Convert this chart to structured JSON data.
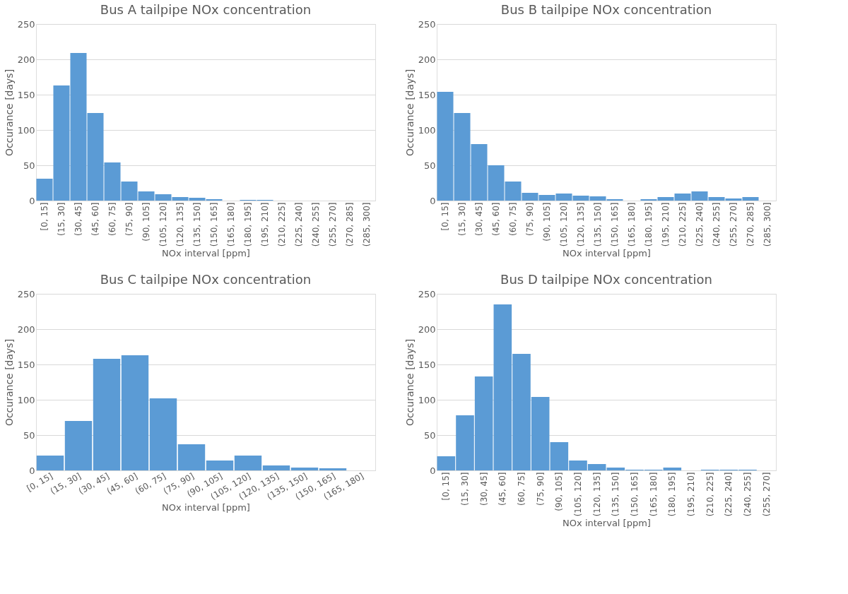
{
  "chart_data": [
    {
      "type": "bar",
      "title": "Bus A tailpipe NOx concentration",
      "xlabel": "NOx interval [ppm]",
      "ylabel": "Occurance [days]",
      "categories": [
        "[0, 15]",
        "(15, 30]",
        "(30, 45]",
        "(45, 60]",
        "(60, 75]",
        "(75, 90]",
        "(90, 105]",
        "(105, 120]",
        "(120, 135]",
        "(135, 150]",
        "(150, 165]",
        "(165, 180]",
        "(180, 195]",
        "(195, 210]",
        "(210, 225]",
        "(225, 240]",
        "(240, 255]",
        "(255, 270]",
        "(270, 285]",
        "(285, 300]"
      ],
      "values": [
        31,
        163,
        209,
        124,
        54,
        27,
        13,
        9,
        5,
        4,
        2,
        0,
        1,
        1,
        0,
        0,
        0,
        0,
        0,
        0
      ],
      "color": "#5b9bd5",
      "ylim": [
        0,
        250
      ],
      "yticks": [
        0,
        50,
        100,
        150,
        200,
        250
      ],
      "grid": "y"
    },
    {
      "type": "bar",
      "title": "Bus B tailpipe NOx concentration",
      "xlabel": "NOx interval [ppm]",
      "ylabel": "Occurance [days]",
      "categories": [
        "[0, 15]",
        "(15, 30]",
        "(30, 45]",
        "(45, 60]",
        "(60, 75]",
        "(75, 90]",
        "(90, 105]",
        "(105, 120]",
        "(120, 135]",
        "(135, 150]",
        "(150, 165]",
        "(165, 180]",
        "(180, 195]",
        "(195, 210]",
        "(210, 225]",
        "(225, 240]",
        "(240, 255]",
        "(255, 270]",
        "(270, 285]",
        "(285, 300]"
      ],
      "values": [
        154,
        124,
        80,
        50,
        27,
        11,
        8,
        10,
        7,
        6,
        2,
        0,
        2,
        5,
        10,
        13,
        5,
        3,
        5,
        0
      ],
      "color": "#5b9bd5",
      "ylim": [
        0,
        250
      ],
      "yticks": [
        0,
        50,
        100,
        150,
        200,
        250
      ],
      "grid": "y"
    },
    {
      "type": "bar",
      "title": "Bus C tailpipe NOx concentration",
      "xlabel": "NOx interval [ppm]",
      "ylabel": "Occurance [days]",
      "categories": [
        "[0, 15]",
        "(15, 30]",
        "(30, 45]",
        "(45, 60]",
        "(60, 75]",
        "(75, 90]",
        "(90, 105]",
        "(105, 120]",
        "(120, 135]",
        "(135, 150]",
        "(150, 165]",
        "(165, 180]"
      ],
      "values": [
        21,
        70,
        158,
        163,
        102,
        37,
        14,
        21,
        7,
        4,
        3,
        0
      ],
      "color": "#5b9bd5",
      "ylim": [
        0,
        250
      ],
      "yticks": [
        0,
        50,
        100,
        150,
        200,
        250
      ],
      "grid": "y"
    },
    {
      "type": "bar",
      "title": "Bus D tailpipe NOx concentration",
      "xlabel": "NOx interval [ppm]",
      "ylabel": "Occurance [days]",
      "categories": [
        "[0, 15]",
        "(15, 30]",
        "(30, 45]",
        "(45, 60]",
        "(60, 75]",
        "(75, 90]",
        "(90, 105]",
        "(105, 120]",
        "(120, 135]",
        "(135, 150]",
        "(150, 165]",
        "(165, 180]",
        "(180, 195]",
        "(195, 210]",
        "(210, 225]",
        "(225, 240]",
        "(240, 255]",
        "(255, 270]"
      ],
      "values": [
        20,
        78,
        133,
        235,
        165,
        104,
        40,
        14,
        9,
        4,
        1,
        1,
        4,
        0,
        1,
        1,
        1,
        0
      ],
      "color": "#5b9bd5",
      "ylim": [
        0,
        250
      ],
      "yticks": [
        0,
        50,
        100,
        150,
        200,
        250
      ],
      "grid": "y"
    }
  ]
}
